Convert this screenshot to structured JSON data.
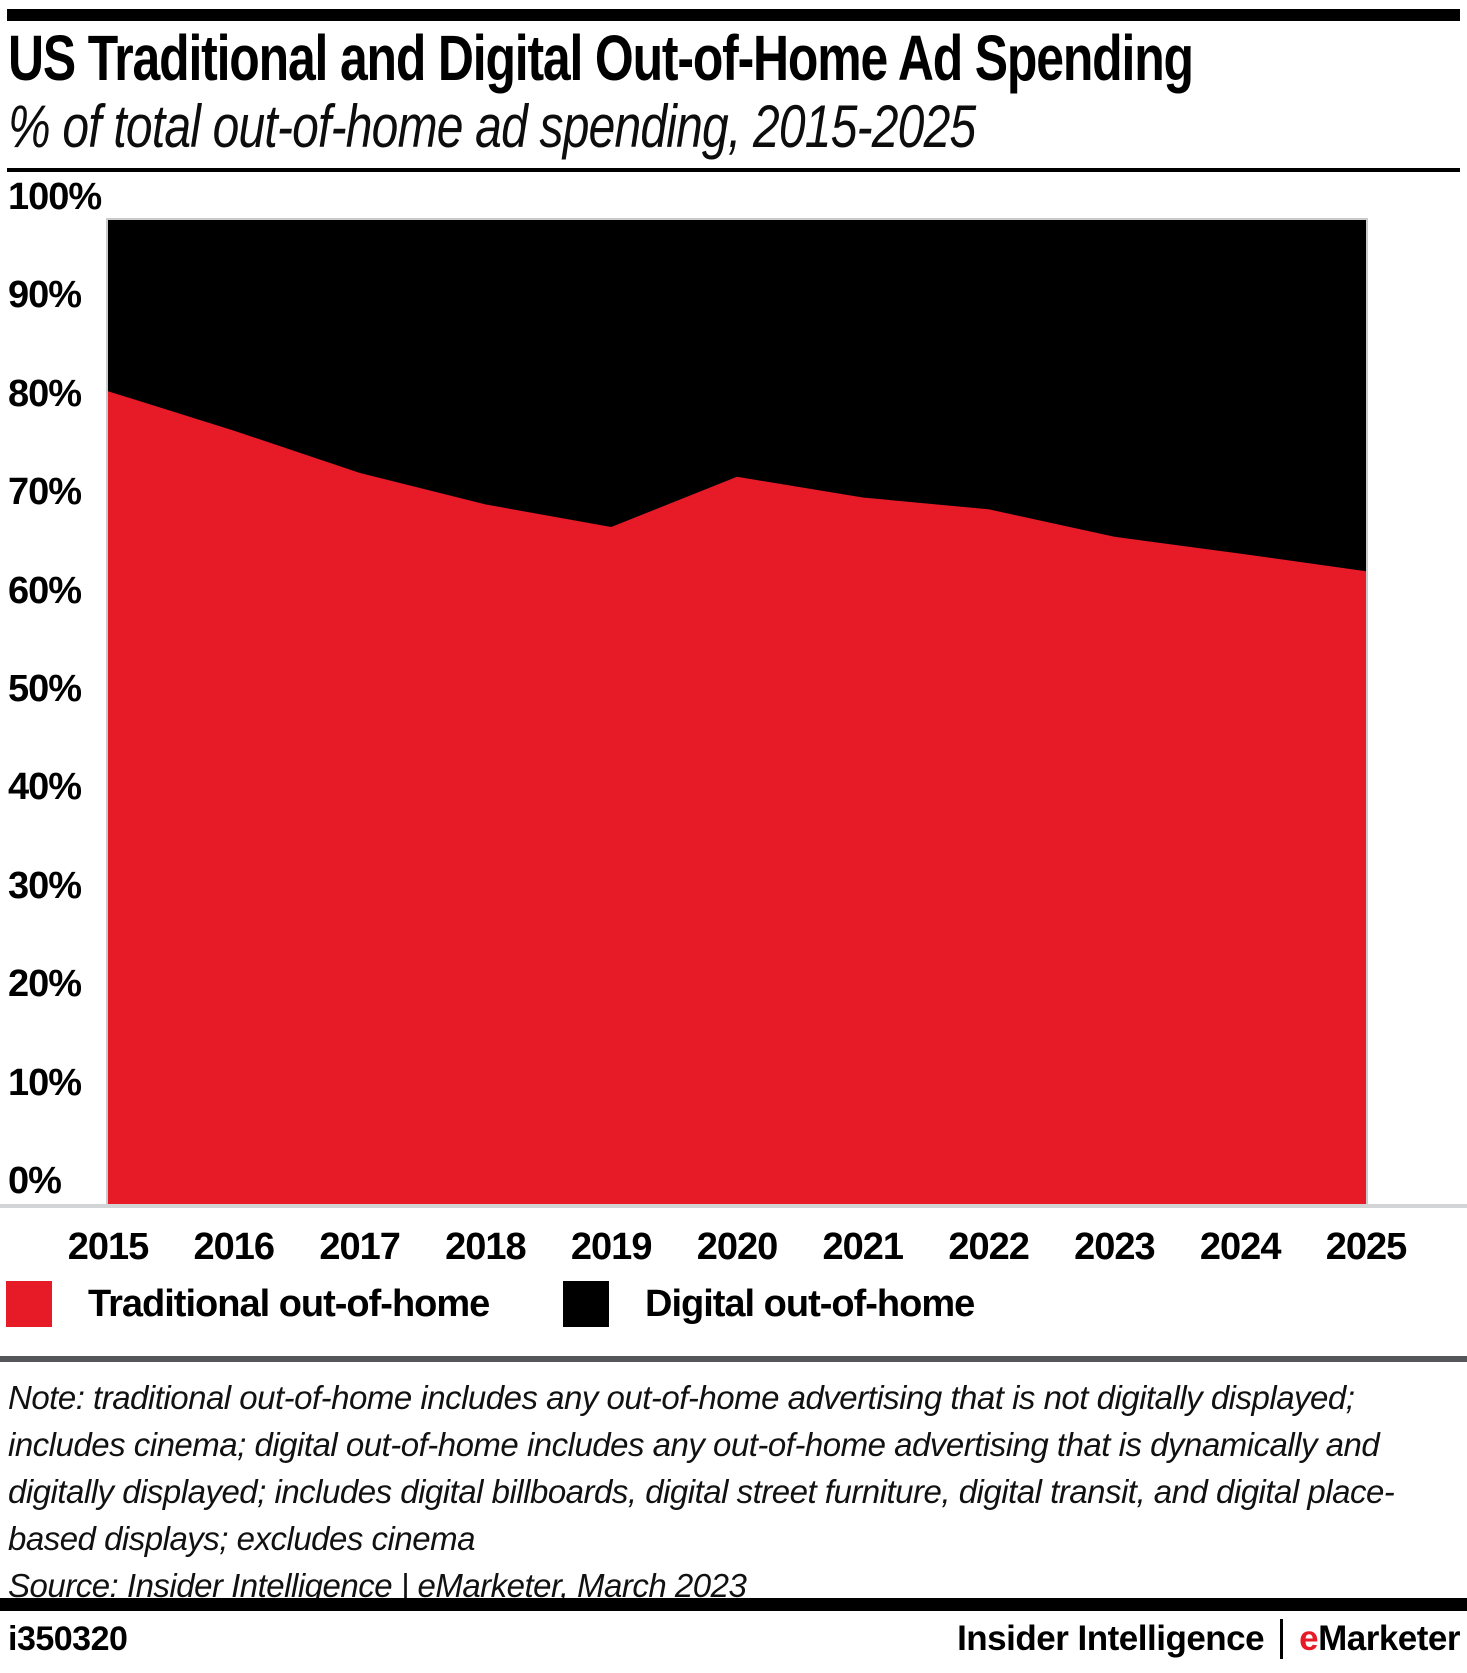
{
  "header": {
    "title": "US Traditional and Digital Out-of-Home Ad Spending",
    "subtitle": "% of total out-of-home ad spending, 2015-2025"
  },
  "chart_data": {
    "type": "area",
    "stacked": true,
    "unit": "% of total out-of-home ad spending",
    "categories": [
      "2015",
      "2016",
      "2017",
      "2018",
      "2019",
      "2020",
      "2021",
      "2022",
      "2023",
      "2024",
      "2025"
    ],
    "series": [
      {
        "name": "Traditional out-of-home",
        "color": "#e61b27",
        "values": [
          82.6,
          78.6,
          74.3,
          71.1,
          68.8,
          73.9,
          71.8,
          70.6,
          67.8,
          66.1,
          64.3
        ]
      },
      {
        "name": "Digital out-of-home",
        "color": "#000000",
        "values": [
          17.4,
          21.4,
          25.7,
          28.9,
          31.2,
          26.1,
          28.2,
          29.4,
          32.2,
          33.9,
          35.7
        ]
      }
    ],
    "ylim": [
      0,
      100
    ],
    "y_ticks": [
      "100%",
      "90%",
      "80%",
      "70%",
      "60%",
      "50%",
      "40%",
      "30%",
      "20%",
      "10%",
      "0%"
    ],
    "grid": false,
    "legend_position": "bottom",
    "title": "US Traditional and Digital Out-of-Home Ad Spending",
    "subtitle": "% of total out-of-home ad spending, 2015-2025"
  },
  "colors": {
    "brand_red": "#e61b27",
    "axis_gray": "#d3d4d5",
    "plot_border_gray": "#c9cacb",
    "note_rule_gray": "#55565a"
  },
  "note": "Note: traditional out-of-home includes any out-of-home advertising that is not digitally displayed; includes cinema; digital out-of-home includes any out-of-home advertising that is dynamically and digitally displayed; includes digital billboards, digital street furniture, digital transit, and digital place-based displays; excludes cinema",
  "source": "Source: Insider Intelligence | eMarketer, March 2023",
  "footer": {
    "chart_id": "i350320",
    "brand_left": "Insider Intelligence",
    "brand_e": "e",
    "brand_rest": "Marketer"
  }
}
